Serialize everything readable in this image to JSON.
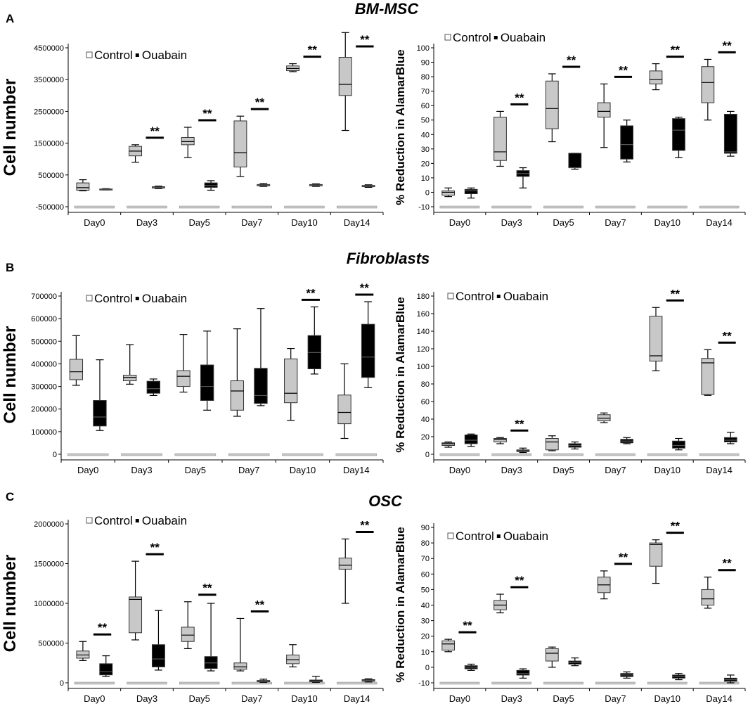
{
  "figure": {
    "rows": [
      {
        "title": "BM-MSC",
        "label": "A"
      },
      {
        "title": "Fibroblasts",
        "label": "B"
      },
      {
        "title": "OSC",
        "label": "C"
      }
    ]
  },
  "legend": {
    "control": "Control",
    "ouabain": "Ouabain"
  },
  "chart_data": [
    {
      "id": "A-cell",
      "type": "boxplot",
      "row": "BM-MSC",
      "panel": "A",
      "ylabel": "Cell number",
      "categories": [
        "Day0",
        "Day3",
        "Day5",
        "Day7",
        "Day10",
        "Day14"
      ],
      "ylim": [
        -500000,
        4500000
      ],
      "yticks": [
        -500000,
        500000,
        1500000,
        2500000,
        3500000,
        4500000
      ],
      "series": [
        {
          "name": "Control",
          "boxes": [
            {
              "min": 0,
              "q1": 20000,
              "median": 100000,
              "q3": 250000,
              "max": 350000
            },
            {
              "min": 900000,
              "q1": 1100000,
              "median": 1250000,
              "q3": 1400000,
              "max": 1450000
            },
            {
              "min": 1050000,
              "q1": 1450000,
              "median": 1550000,
              "q3": 1680000,
              "max": 2000000
            },
            {
              "min": 450000,
              "q1": 750000,
              "median": 1200000,
              "q3": 2200000,
              "max": 2350000
            },
            {
              "min": 3750000,
              "q1": 3780000,
              "median": 3850000,
              "q3": 3930000,
              "max": 4000000
            },
            {
              "min": 1900000,
              "q1": 3000000,
              "median": 3350000,
              "q3": 4200000,
              "max": 4980000
            }
          ]
        },
        {
          "name": "Ouabain",
          "boxes": [
            {
              "min": 30000,
              "q1": 40000,
              "median": 50000,
              "q3": 60000,
              "max": 70000
            },
            {
              "min": 70000,
              "q1": 90000,
              "median": 110000,
              "q3": 130000,
              "max": 150000
            },
            {
              "min": 20000,
              "q1": 110000,
              "median": 170000,
              "q3": 250000,
              "max": 320000
            },
            {
              "min": 140000,
              "q1": 160000,
              "median": 180000,
              "q3": 200000,
              "max": 230000
            },
            {
              "min": 140000,
              "q1": 160000,
              "median": 180000,
              "q3": 200000,
              "max": 220000
            },
            {
              "min": 110000,
              "q1": 130000,
              "median": 150000,
              "q3": 170000,
              "max": 190000
            }
          ]
        }
      ],
      "significance": [
        {
          "category": "Day3",
          "label": "**"
        },
        {
          "category": "Day5",
          "label": "**"
        },
        {
          "category": "Day7",
          "label": "**"
        },
        {
          "category": "Day10",
          "label": "**"
        },
        {
          "category": "Day14",
          "label": "**"
        }
      ]
    },
    {
      "id": "A-alamar",
      "type": "boxplot",
      "row": "BM-MSC",
      "panel": "A",
      "ylabel": "% Reduction in AlamarBlue",
      "categories": [
        "Day0",
        "Day3",
        "Day5",
        "Day7",
        "Day10",
        "Day14"
      ],
      "ylim": [
        -10,
        100
      ],
      "yticks": [
        -10,
        0,
        10,
        20,
        30,
        40,
        50,
        60,
        70,
        80,
        90,
        100
      ],
      "series": [
        {
          "name": "Control",
          "boxes": [
            {
              "min": -3,
              "q1": -2,
              "median": 0,
              "q3": 1,
              "max": 3
            },
            {
              "min": 18,
              "q1": 22,
              "median": 28,
              "q3": 52,
              "max": 56
            },
            {
              "min": 35,
              "q1": 44,
              "median": 58,
              "q3": 77,
              "max": 82
            },
            {
              "min": 31,
              "q1": 52,
              "median": 56,
              "q3": 62,
              "max": 75
            },
            {
              "min": 71,
              "q1": 75,
              "median": 78,
              "q3": 84,
              "max": 89
            },
            {
              "min": 50,
              "q1": 62,
              "median": 76,
              "q3": 87,
              "max": 92
            }
          ]
        },
        {
          "name": "Ouabain",
          "boxes": [
            {
              "min": -4,
              "q1": -1,
              "median": 1,
              "q3": 2,
              "max": 3
            },
            {
              "min": 3,
              "q1": 11,
              "median": 13,
              "q3": 15,
              "max": 17
            },
            {
              "min": 16,
              "q1": 17,
              "median": 17,
              "q3": 27,
              "max": 27
            },
            {
              "min": 21,
              "q1": 23,
              "median": 33,
              "q3": 46,
              "max": 50
            },
            {
              "min": 24,
              "q1": 29,
              "median": 43,
              "q3": 51,
              "max": 52
            },
            {
              "min": 25,
              "q1": 27,
              "median": 28,
              "q3": 54,
              "max": 56
            }
          ]
        }
      ],
      "significance": [
        {
          "category": "Day3",
          "label": "**"
        },
        {
          "category": "Day5",
          "label": "**"
        },
        {
          "category": "Day7",
          "label": "**"
        },
        {
          "category": "Day10",
          "label": "**"
        },
        {
          "category": "Day14",
          "label": "**"
        }
      ]
    },
    {
      "id": "B-cell",
      "type": "boxplot",
      "row": "Fibroblasts",
      "panel": "B",
      "ylabel": "Cell number",
      "categories": [
        "Day0",
        "Day3",
        "Day5",
        "Day7",
        "Day10",
        "Day14"
      ],
      "ylim": [
        0,
        700000
      ],
      "yticks": [
        0,
        100000,
        200000,
        300000,
        400000,
        500000,
        600000,
        700000
      ],
      "series": [
        {
          "name": "Control",
          "boxes": [
            {
              "min": 305000,
              "q1": 330000,
              "median": 365000,
              "q3": 420000,
              "max": 525000
            },
            {
              "min": 310000,
              "q1": 325000,
              "median": 340000,
              "q3": 350000,
              "max": 485000
            },
            {
              "min": 275000,
              "q1": 300000,
              "median": 345000,
              "q3": 370000,
              "max": 530000
            },
            {
              "min": 168000,
              "q1": 195000,
              "median": 280000,
              "q3": 325000,
              "max": 555000
            },
            {
              "min": 150000,
              "q1": 228000,
              "median": 270000,
              "q3": 422000,
              "max": 468000
            },
            {
              "min": 70000,
              "q1": 135000,
              "median": 185000,
              "q3": 262000,
              "max": 400000
            }
          ]
        },
        {
          "name": "Ouabain",
          "boxes": [
            {
              "min": 105000,
              "q1": 125000,
              "median": 165000,
              "q3": 238000,
              "max": 418000
            },
            {
              "min": 260000,
              "q1": 270000,
              "median": 290000,
              "q3": 323000,
              "max": 333000
            },
            {
              "min": 195000,
              "q1": 238000,
              "median": 300000,
              "q3": 395000,
              "max": 545000
            },
            {
              "min": 215000,
              "q1": 225000,
              "median": 260000,
              "q3": 380000,
              "max": 645000
            },
            {
              "min": 355000,
              "q1": 378000,
              "median": 450000,
              "q3": 525000,
              "max": 652000
            },
            {
              "min": 295000,
              "q1": 340000,
              "median": 430000,
              "q3": 575000,
              "max": 675000
            }
          ]
        }
      ],
      "significance": [
        {
          "category": "Day10",
          "label": "**"
        },
        {
          "category": "Day14",
          "label": "**"
        }
      ]
    },
    {
      "id": "B-alamar",
      "type": "boxplot",
      "row": "Fibroblasts",
      "panel": "B",
      "ylabel": "% Reduction in AlamarBlue",
      "categories": [
        "Day0",
        "Day3",
        "Day5",
        "Day7",
        "Day10",
        "Day14"
      ],
      "ylim": [
        0,
        180
      ],
      "yticks": [
        0,
        20,
        40,
        60,
        80,
        100,
        120,
        140,
        160,
        180
      ],
      "series": [
        {
          "name": "Control",
          "boxes": [
            {
              "min": 8,
              "q1": 10,
              "median": 12,
              "q3": 13,
              "max": 14
            },
            {
              "min": 12,
              "q1": 14,
              "median": 17,
              "q3": 18,
              "max": 19
            },
            {
              "min": 4,
              "q1": 5,
              "median": 14,
              "q3": 18,
              "max": 21
            },
            {
              "min": 36,
              "q1": 38,
              "median": 41,
              "q3": 45,
              "max": 47
            },
            {
              "min": 95,
              "q1": 106,
              "median": 112,
              "q3": 157,
              "max": 167
            },
            {
              "min": 67,
              "q1": 68,
              "median": 104,
              "q3": 109,
              "max": 119
            }
          ]
        },
        {
          "name": "Ouabain",
          "boxes": [
            {
              "min": 9,
              "q1": 12,
              "median": 16,
              "q3": 22,
              "max": 23
            },
            {
              "min": 2,
              "q1": 3,
              "median": 4,
              "q3": 5,
              "max": 7
            },
            {
              "min": 6,
              "q1": 8,
              "median": 10,
              "q3": 12,
              "max": 14
            },
            {
              "min": 12,
              "q1": 13,
              "median": 15,
              "q3": 17,
              "max": 19
            },
            {
              "min": 5,
              "q1": 7,
              "median": 10,
              "q3": 15,
              "max": 18
            },
            {
              "min": 12,
              "q1": 14,
              "median": 16,
              "q3": 19,
              "max": 25
            }
          ]
        }
      ],
      "significance": [
        {
          "category": "Day3",
          "label": "**"
        },
        {
          "category": "Day10",
          "label": "**"
        },
        {
          "category": "Day14",
          "label": "**"
        }
      ]
    },
    {
      "id": "C-cell",
      "type": "boxplot",
      "row": "OSC",
      "panel": "C",
      "ylabel": "Cell number",
      "categories": [
        "Day0",
        "Day3",
        "Day5",
        "Day7",
        "Day10",
        "Day14"
      ],
      "ylim": [
        0,
        2000000
      ],
      "yticks": [
        0,
        500000,
        1000000,
        1500000,
        2000000
      ],
      "series": [
        {
          "name": "Control",
          "boxes": [
            {
              "min": 280000,
              "q1": 310000,
              "median": 350000,
              "q3": 400000,
              "max": 520000
            },
            {
              "min": 540000,
              "q1": 630000,
              "median": 1050000,
              "q3": 1080000,
              "max": 1530000
            },
            {
              "min": 430000,
              "q1": 520000,
              "median": 600000,
              "q3": 700000,
              "max": 1020000
            },
            {
              "min": 150000,
              "q1": 170000,
              "median": 200000,
              "q3": 250000,
              "max": 810000
            },
            {
              "min": 200000,
              "q1": 240000,
              "median": 290000,
              "q3": 350000,
              "max": 480000
            },
            {
              "min": 1000000,
              "q1": 1430000,
              "median": 1480000,
              "q3": 1570000,
              "max": 1810000
            }
          ]
        },
        {
          "name": "Ouabain",
          "boxes": [
            {
              "min": 80000,
              "q1": 100000,
              "median": 140000,
              "q3": 240000,
              "max": 340000
            },
            {
              "min": 160000,
              "q1": 200000,
              "median": 300000,
              "q3": 480000,
              "max": 910000
            },
            {
              "min": 150000,
              "q1": 180000,
              "median": 250000,
              "q3": 330000,
              "max": 1000000
            },
            {
              "min": 5000,
              "q1": 12000,
              "median": 20000,
              "q3": 30000,
              "max": 45000
            },
            {
              "min": 5000,
              "q1": 12000,
              "median": 20000,
              "q3": 35000,
              "max": 80000
            },
            {
              "min": 10000,
              "q1": 20000,
              "median": 30000,
              "q3": 40000,
              "max": 50000
            }
          ]
        }
      ],
      "significance": [
        {
          "category": "Day0",
          "label": "**"
        },
        {
          "category": "Day3",
          "label": "**"
        },
        {
          "category": "Day5",
          "label": "**"
        },
        {
          "category": "Day7",
          "label": "**"
        },
        {
          "category": "Day14",
          "label": "**"
        }
      ]
    },
    {
      "id": "C-alamar",
      "type": "boxplot",
      "row": "OSC",
      "panel": "C",
      "ylabel": "% Reduction in AlamarBlue",
      "categories": [
        "Day0",
        "Day3",
        "Day5",
        "Day7",
        "Day10",
        "Day14"
      ],
      "ylim": [
        -10,
        90
      ],
      "yticks": [
        -10,
        0,
        10,
        20,
        30,
        40,
        50,
        60,
        70,
        80,
        90
      ],
      "series": [
        {
          "name": "Control",
          "boxes": [
            {
              "min": 10,
              "q1": 11,
              "median": 15,
              "q3": 17,
              "max": 18
            },
            {
              "min": 35,
              "q1": 37,
              "median": 40,
              "q3": 43,
              "max": 47
            },
            {
              "min": 0,
              "q1": 4,
              "median": 9,
              "q3": 12,
              "max": 13
            },
            {
              "min": 44,
              "q1": 48,
              "median": 53,
              "q3": 58,
              "max": 62
            },
            {
              "min": 54,
              "q1": 65,
              "median": 79,
              "q3": 80,
              "max": 82
            },
            {
              "min": 38,
              "q1": 40,
              "median": 44,
              "q3": 50,
              "max": 58
            }
          ]
        },
        {
          "name": "Ouabain",
          "boxes": [
            {
              "min": -2,
              "q1": -1,
              "median": 0,
              "q3": 1,
              "max": 2
            },
            {
              "min": -7,
              "q1": -5,
              "median": -4,
              "q3": -2,
              "max": -1
            },
            {
              "min": 1,
              "q1": 2,
              "median": 3,
              "q3": 4,
              "max": 6
            },
            {
              "min": -7,
              "q1": -6,
              "median": -5,
              "q3": -4,
              "max": -3
            },
            {
              "min": -8,
              "q1": -7,
              "median": -6,
              "q3": -5,
              "max": -4
            },
            {
              "min": -10,
              "q1": -9,
              "median": -8,
              "q3": -7,
              "max": -5
            }
          ]
        }
      ],
      "significance": [
        {
          "category": "Day0",
          "label": "**"
        },
        {
          "category": "Day3",
          "label": "**"
        },
        {
          "category": "Day7",
          "label": "**"
        },
        {
          "category": "Day10",
          "label": "**"
        },
        {
          "category": "Day14",
          "label": "**"
        }
      ]
    }
  ]
}
